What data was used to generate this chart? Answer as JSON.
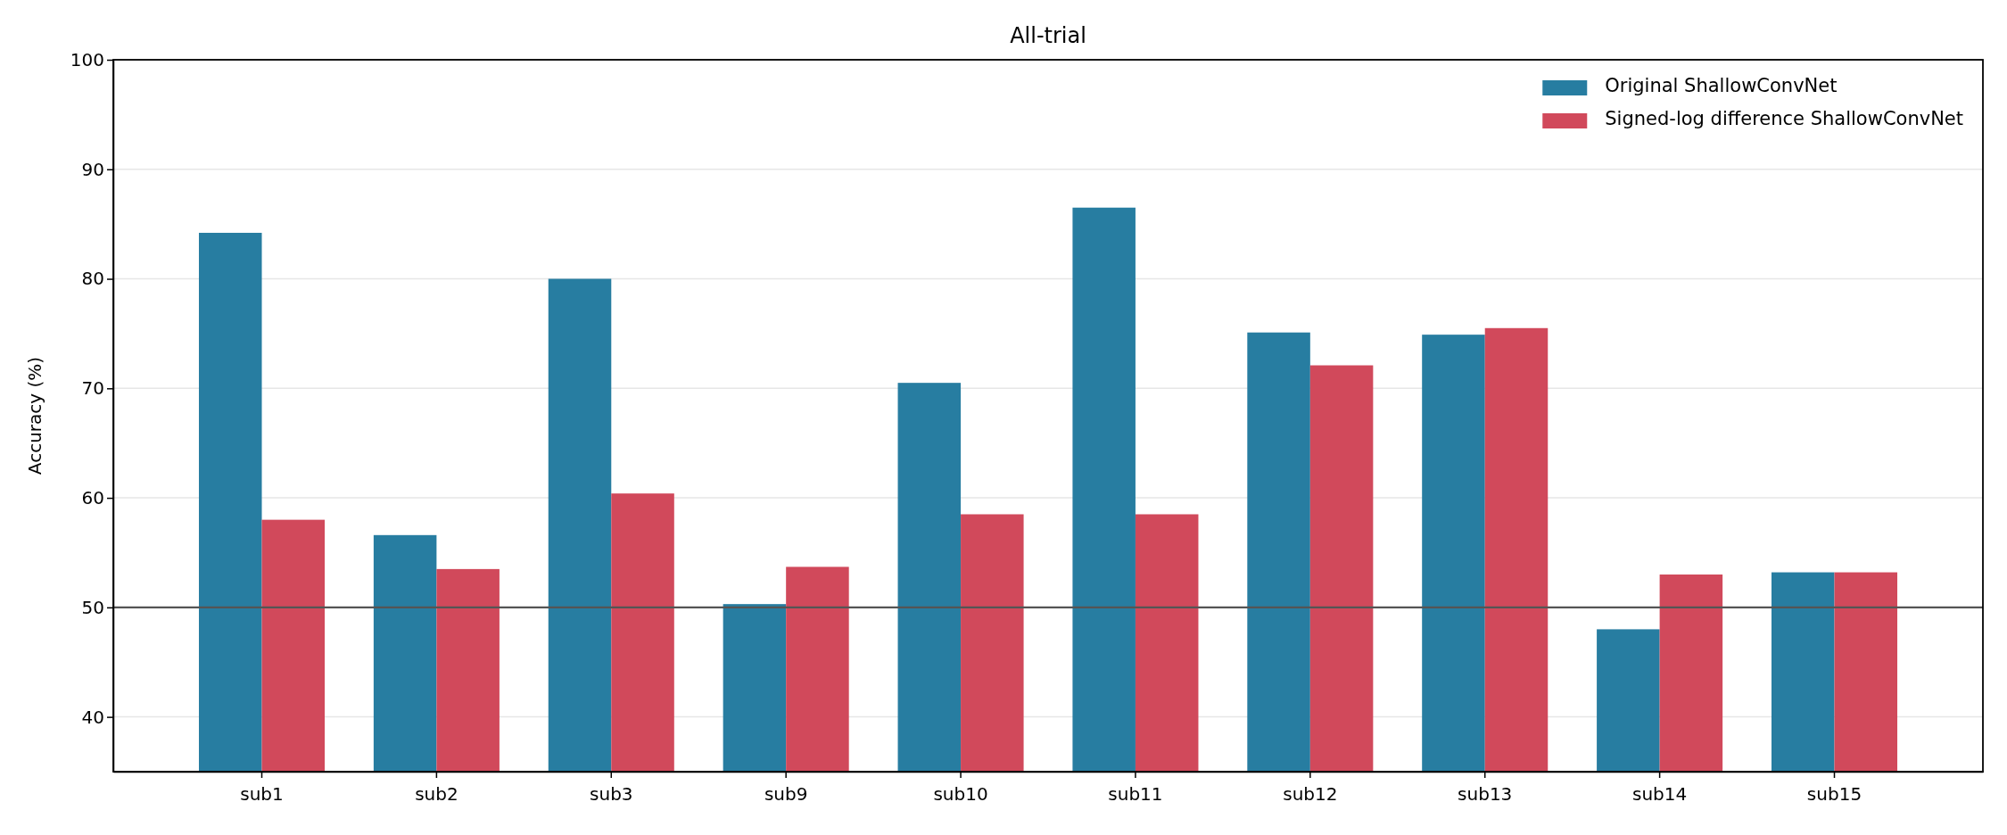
{
  "chart_data": {
    "type": "bar",
    "title": "All-trial",
    "ylabel": "Accuracy (%)",
    "categories": [
      "sub1",
      "sub2",
      "sub3",
      "sub9",
      "sub10",
      "sub11",
      "sub12",
      "sub13",
      "sub14",
      "sub15"
    ],
    "series": [
      {
        "name": "Original ShallowConvNet",
        "color": "#277da1",
        "values": [
          84.2,
          56.6,
          80.0,
          50.3,
          70.5,
          86.5,
          75.1,
          74.9,
          48.0,
          53.2
        ]
      },
      {
        "name": "Signed-log difference ShallowConvNet",
        "color": "#d1495b",
        "values": [
          58.0,
          53.5,
          60.4,
          53.7,
          58.5,
          58.5,
          72.1,
          75.5,
          53.0,
          53.2
        ]
      }
    ],
    "ylim": [
      35,
      100
    ],
    "yticks": [
      40,
      50,
      60,
      70,
      80,
      90,
      100
    ],
    "grid": "y",
    "legend": "top right",
    "ref_lines": [
      {
        "axis": "y",
        "value": 50,
        "color": "#555555"
      }
    ]
  }
}
